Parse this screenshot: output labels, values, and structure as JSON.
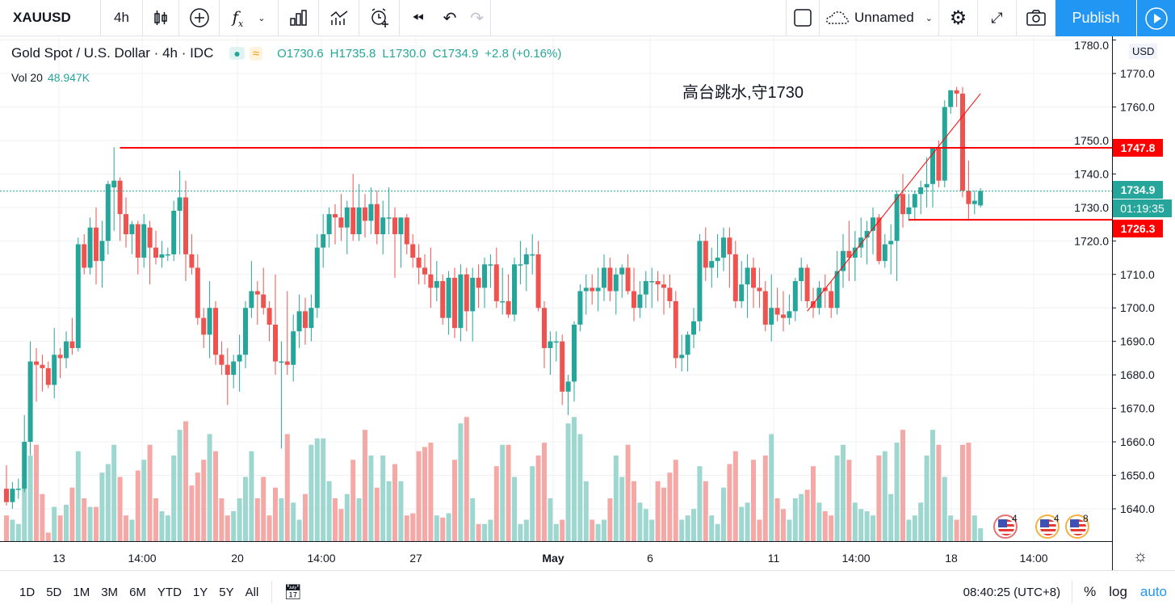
{
  "toolbar": {
    "symbol": "XAUUSD",
    "interval": "4h",
    "layout_name": "Unnamed",
    "publish": "Publish"
  },
  "legend": {
    "title": "Gold Spot / U.S. Dollar · 4h · IDC",
    "open": "O1730.6",
    "high": "H1735.8",
    "low": "L1730.0",
    "close": "C1734.9",
    "change": "+2.8 (+0.16%)",
    "vol_label": "Vol 20",
    "vol_value": "48.947K"
  },
  "annotation": "高台跳水,守1730",
  "price_axis": {
    "currency": "USD",
    "ticks": [
      "1780.0",
      "1770.0",
      "1760.0",
      "1750.0",
      "1740.0",
      "1730.0",
      "1720.0",
      "1710.0",
      "1700.0",
      "1690.0",
      "1680.0",
      "1670.0",
      "1660.0",
      "1650.0",
      "1640.0"
    ]
  },
  "price_labels": {
    "resistance": "1747.8",
    "current": "1734.9",
    "countdown": "01:19:35",
    "support": "1726.3"
  },
  "time_axis": [
    "13",
    "14:00",
    "20",
    "14:00",
    "27",
    "May",
    "6",
    "11",
    "14:00",
    "18",
    "14:00"
  ],
  "events": [
    "4",
    "4",
    "8"
  ],
  "bottom": {
    "ranges": [
      "1D",
      "5D",
      "1M",
      "3M",
      "6M",
      "YTD",
      "1Y",
      "5Y",
      "All"
    ],
    "clock": "08:40:25 (UTC+8)",
    "percent": "%",
    "log": "log",
    "auto": "auto"
  },
  "colors": {
    "up": "#26a69a",
    "down": "#ef5350",
    "line": "#ff0000",
    "accent": "#2196f3"
  },
  "chart_data": {
    "type": "candlestick",
    "symbol": "XAUUSD",
    "interval": "4h",
    "ylim": [
      1636,
      1781
    ],
    "hlines": [
      {
        "price": 1747.8,
        "from_index": 19
      },
      {
        "price": 1726.3,
        "from_index": 151
      }
    ],
    "trendline": {
      "from": [
        134,
        1699
      ],
      "to": [
        163,
        1764
      ]
    },
    "current_price": 1734.9,
    "candles_ohlcv": [
      [
        1646,
        1653,
        1641,
        1642,
        12
      ],
      [
        1642,
        1648,
        1640,
        1646,
        10
      ],
      [
        1646,
        1649,
        1643,
        1646,
        8
      ],
      [
        1646,
        1668,
        1645,
        1660,
        28
      ],
      [
        1660,
        1690,
        1656,
        1684,
        40
      ],
      [
        1684,
        1688,
        1672,
        1683,
        45
      ],
      [
        1683,
        1686,
        1675,
        1682,
        22
      ],
      [
        1682,
        1684,
        1676,
        1677,
        4
      ],
      [
        1677,
        1694,
        1673,
        1686,
        16
      ],
      [
        1686,
        1688,
        1679,
        1685,
        12
      ],
      [
        1685,
        1693,
        1682,
        1690,
        17
      ],
      [
        1690,
        1697,
        1686,
        1688,
        25
      ],
      [
        1688,
        1721,
        1687,
        1719,
        42
      ],
      [
        1719,
        1722,
        1710,
        1712,
        20
      ],
      [
        1712,
        1727,
        1710,
        1724,
        16
      ],
      [
        1724,
        1730,
        1707,
        1714,
        16
      ],
      [
        1714,
        1726,
        1706,
        1720,
        32
      ],
      [
        1720,
        1738,
        1716,
        1737,
        36
      ],
      [
        1736,
        1748,
        1723,
        1738,
        45
      ],
      [
        1738,
        1739,
        1720,
        1728,
        30
      ],
      [
        1728,
        1733,
        1718,
        1722,
        12
      ],
      [
        1722,
        1726,
        1716,
        1725,
        10
      ],
      [
        1725,
        1726,
        1710,
        1715,
        33
      ],
      [
        1715,
        1728,
        1712,
        1725,
        38
      ],
      [
        1724,
        1726,
        1707,
        1718,
        45
      ],
      [
        1718,
        1723,
        1713,
        1715,
        20
      ],
      [
        1715,
        1720,
        1712,
        1716,
        14
      ],
      [
        1716,
        1718,
        1714,
        1716,
        12
      ],
      [
        1716,
        1732,
        1714,
        1729,
        40
      ],
      [
        1729,
        1741,
        1716,
        1733,
        52
      ],
      [
        1733,
        1738,
        1708,
        1716,
        56
      ],
      [
        1716,
        1722,
        1710,
        1712,
        26
      ],
      [
        1712,
        1716,
        1695,
        1697,
        32
      ],
      [
        1697,
        1700,
        1688,
        1692,
        38
      ],
      [
        1692,
        1708,
        1685,
        1700,
        50
      ],
      [
        1700,
        1702,
        1683,
        1686,
        42
      ],
      [
        1686,
        1690,
        1680,
        1683,
        20
      ],
      [
        1683,
        1688,
        1671,
        1680,
        12
      ],
      [
        1680,
        1686,
        1676,
        1684,
        14
      ],
      [
        1684,
        1692,
        1675,
        1686,
        20
      ],
      [
        1686,
        1702,
        1682,
        1700,
        30
      ],
      [
        1700,
        1714,
        1697,
        1705,
        42
      ],
      [
        1705,
        1708,
        1695,
        1704,
        20
      ],
      [
        1704,
        1712,
        1698,
        1700,
        30
      ],
      [
        1700,
        1702,
        1690,
        1695,
        12
      ],
      [
        1695,
        1710,
        1680,
        1684,
        25
      ],
      [
        1684,
        1690,
        1658,
        1684,
        20
      ],
      [
        1684,
        1705,
        1680,
        1683,
        50
      ],
      [
        1683,
        1698,
        1678,
        1693,
        18
      ],
      [
        1693,
        1704,
        1688,
        1699,
        10
      ],
      [
        1699,
        1703,
        1689,
        1694,
        22
      ],
      [
        1694,
        1704,
        1690,
        1700,
        45
      ],
      [
        1700,
        1722,
        1697,
        1718,
        48
      ],
      [
        1718,
        1728,
        1712,
        1722,
        48
      ],
      [
        1722,
        1730,
        1718,
        1728,
        28
      ],
      [
        1728,
        1731,
        1719,
        1727,
        20
      ],
      [
        1727,
        1734,
        1720,
        1724,
        15
      ],
      [
        1724,
        1732,
        1716,
        1730,
        22
      ],
      [
        1730,
        1740,
        1720,
        1722,
        38
      ],
      [
        1722,
        1737,
        1720,
        1730,
        20
      ],
      [
        1730,
        1734,
        1721,
        1726,
        52
      ],
      [
        1726,
        1736,
        1722,
        1731,
        40
      ],
      [
        1731,
        1735,
        1719,
        1722,
        25
      ],
      [
        1722,
        1732,
        1716,
        1727,
        40
      ],
      [
        1727,
        1736,
        1722,
        1727,
        28
      ],
      [
        1727,
        1730,
        1709,
        1722,
        36
      ],
      [
        1722,
        1727,
        1712,
        1727,
        28
      ],
      [
        1727,
        1728,
        1716,
        1719,
        12
      ],
      [
        1719,
        1722,
        1712,
        1715,
        13
      ],
      [
        1715,
        1719,
        1707,
        1712,
        42
      ],
      [
        1712,
        1716,
        1707,
        1710,
        44
      ],
      [
        1710,
        1718,
        1700,
        1706,
        46
      ],
      [
        1706,
        1714,
        1702,
        1708,
        12
      ],
      [
        1708,
        1710,
        1695,
        1697,
        11
      ],
      [
        1697,
        1711,
        1692,
        1709,
        13
      ],
      [
        1709,
        1712,
        1691,
        1694,
        38
      ],
      [
        1694,
        1713,
        1690,
        1710,
        55
      ],
      [
        1710,
        1712,
        1693,
        1699,
        58
      ],
      [
        1699,
        1712,
        1690,
        1709,
        20
      ],
      [
        1709,
        1713,
        1700,
        1706,
        8
      ],
      [
        1706,
        1715,
        1700,
        1713,
        8
      ],
      [
        1713,
        1716,
        1706,
        1713,
        10
      ],
      [
        1713,
        1718,
        1700,
        1702,
        35
      ],
      [
        1702,
        1712,
        1698,
        1702,
        45
      ],
      [
        1702,
        1710,
        1697,
        1698,
        45
      ],
      [
        1698,
        1715,
        1696,
        1713,
        30
      ],
      [
        1713,
        1720,
        1707,
        1713,
        8
      ],
      [
        1713,
        1718,
        1705,
        1716,
        10
      ],
      [
        1716,
        1722,
        1710,
        1716,
        35
      ],
      [
        1716,
        1720,
        1699,
        1700,
        40
      ],
      [
        1700,
        1702,
        1682,
        1688,
        46
      ],
      [
        1688,
        1693,
        1680,
        1690,
        20
      ],
      [
        1690,
        1693,
        1684,
        1690,
        8
      ],
      [
        1690,
        1692,
        1671,
        1675,
        10
      ],
      [
        1675,
        1680,
        1668,
        1678,
        55
      ],
      [
        1678,
        1696,
        1672,
        1695,
        58
      ],
      [
        1695,
        1707,
        1693,
        1705,
        50
      ],
      [
        1705,
        1710,
        1698,
        1706,
        28
      ],
      [
        1706,
        1710,
        1701,
        1705,
        10
      ],
      [
        1705,
        1712,
        1699,
        1706,
        8
      ],
      [
        1706,
        1716,
        1702,
        1712,
        10
      ],
      [
        1712,
        1715,
        1702,
        1705,
        20
      ],
      [
        1705,
        1712,
        1698,
        1710,
        40
      ],
      [
        1710,
        1713,
        1703,
        1712,
        30
      ],
      [
        1712,
        1716,
        1704,
        1705,
        45
      ],
      [
        1705,
        1712,
        1696,
        1700,
        28
      ],
      [
        1700,
        1708,
        1697,
        1704,
        18
      ],
      [
        1704,
        1711,
        1700,
        1708,
        15
      ],
      [
        1708,
        1712,
        1700,
        1708,
        10
      ],
      [
        1708,
        1711,
        1702,
        1707,
        28
      ],
      [
        1707,
        1710,
        1698,
        1706,
        25
      ],
      [
        1706,
        1710,
        1700,
        1702,
        32
      ],
      [
        1702,
        1705,
        1682,
        1685,
        38
      ],
      [
        1685,
        1692,
        1681,
        1686,
        10
      ],
      [
        1686,
        1693,
        1681,
        1692,
        12
      ],
      [
        1692,
        1700,
        1688,
        1696,
        15
      ],
      [
        1696,
        1722,
        1693,
        1720,
        35
      ],
      [
        1720,
        1724,
        1708,
        1712,
        28
      ],
      [
        1712,
        1718,
        1706,
        1714,
        12
      ],
      [
        1714,
        1722,
        1709,
        1715,
        8
      ],
      [
        1715,
        1724,
        1711,
        1721,
        25
      ],
      [
        1721,
        1724,
        1706,
        1716,
        36
      ],
      [
        1716,
        1720,
        1700,
        1702,
        42
      ],
      [
        1702,
        1714,
        1700,
        1707,
        16
      ],
      [
        1707,
        1716,
        1697,
        1712,
        18
      ],
      [
        1712,
        1715,
        1700,
        1706,
        38
      ],
      [
        1706,
        1712,
        1700,
        1705,
        10
      ],
      [
        1705,
        1708,
        1693,
        1695,
        40
      ],
      [
        1695,
        1710,
        1690,
        1700,
        50
      ],
      [
        1700,
        1706,
        1696,
        1698,
        20
      ],
      [
        1698,
        1705,
        1693,
        1697,
        15
      ],
      [
        1697,
        1704,
        1695,
        1699,
        10
      ],
      [
        1699,
        1709,
        1696,
        1708,
        20
      ],
      [
        1708,
        1715,
        1702,
        1712,
        22
      ],
      [
        1712,
        1713,
        1700,
        1702,
        24
      ],
      [
        1702,
        1706,
        1697,
        1700,
        35
      ],
      [
        1700,
        1708,
        1698,
        1706,
        18
      ],
      [
        1706,
        1710,
        1700,
        1705,
        14
      ],
      [
        1705,
        1708,
        1697,
        1700,
        12
      ],
      [
        1700,
        1717,
        1698,
        1711,
        40
      ],
      [
        1711,
        1722,
        1706,
        1717,
        45
      ],
      [
        1717,
        1726,
        1708,
        1715,
        38
      ],
      [
        1715,
        1723,
        1708,
        1718,
        18
      ],
      [
        1718,
        1727,
        1715,
        1721,
        15
      ],
      [
        1721,
        1726,
        1713,
        1723,
        14
      ],
      [
        1723,
        1730,
        1716,
        1727,
        12
      ],
      [
        1727,
        1728,
        1713,
        1714,
        40
      ],
      [
        1714,
        1722,
        1712,
        1719,
        42
      ],
      [
        1719,
        1725,
        1710,
        1720,
        22
      ],
      [
        1720,
        1735,
        1708,
        1734,
        46
      ],
      [
        1734,
        1740,
        1724,
        1728,
        52
      ],
      [
        1728,
        1734,
        1726,
        1730,
        10
      ],
      [
        1730,
        1735,
        1726,
        1734,
        12
      ],
      [
        1734,
        1738,
        1728,
        1736,
        18
      ],
      [
        1736,
        1745,
        1730,
        1737,
        40
      ],
      [
        1737,
        1748,
        1730,
        1748,
        52
      ],
      [
        1748,
        1750,
        1736,
        1738,
        45
      ],
      [
        1738,
        1762,
        1736,
        1760,
        30
      ],
      [
        1760,
        1765,
        1758,
        1765,
        12
      ],
      [
        1765,
        1766,
        1760,
        1764,
        10
      ],
      [
        1764,
        1766,
        1733,
        1735,
        45
      ],
      [
        1735,
        1744,
        1726,
        1731,
        46
      ],
      [
        1731,
        1735,
        1728,
        1732,
        12
      ],
      [
        1730.6,
        1735.8,
        1730.0,
        1734.9,
        6
      ]
    ]
  }
}
